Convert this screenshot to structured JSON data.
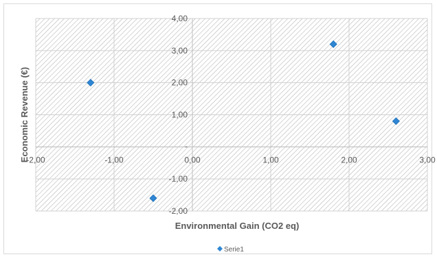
{
  "chart_data": {
    "type": "scatter",
    "title": "",
    "xlabel": "Environmental Gain (CO2 eq)",
    "ylabel": "Economic Revenue (€)",
    "xlim": [
      -2,
      3
    ],
    "ylim": [
      -2,
      4
    ],
    "x_ticks": [
      -2,
      -1,
      0,
      1,
      2,
      3
    ],
    "y_ticks": [
      -2,
      -1,
      0,
      1,
      2,
      3,
      4
    ],
    "x_tick_labels": [
      "-2,00",
      "-1,00",
      "0,00",
      "1,00",
      "2,00",
      "3,00"
    ],
    "y_tick_labels": [
      "-2,00",
      "-1,00",
      "-",
      "1,00",
      "2,00",
      "3,00",
      "4,00"
    ],
    "grid": true,
    "plot_area_pattern": "diagonal-hatch",
    "legend_position": "bottom",
    "series": [
      {
        "name": "Serie1",
        "color": "#2e86d4",
        "marker": "diamond",
        "points": [
          {
            "x": -1.3,
            "y": 2.0
          },
          {
            "x": -0.5,
            "y": -1.6
          },
          {
            "x": 1.8,
            "y": 3.2
          },
          {
            "x": 2.6,
            "y": 0.8
          }
        ]
      }
    ]
  }
}
